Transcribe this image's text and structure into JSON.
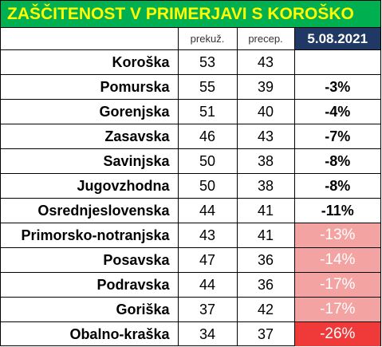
{
  "title": "ZAŠČITENOST V PRIMERJAVI S KOROŠKO",
  "table": {
    "header": [
      "prekuž.",
      "precep.",
      "5.08.2021"
    ],
    "rows": [
      [
        "Koroška",
        53,
        43
      ],
      [
        "Pomurska",
        55,
        39,
        "-3%"
      ],
      [
        "Gorenjska",
        51,
        40,
        "-4%"
      ],
      [
        "Zasavska",
        46,
        43,
        "-7%"
      ],
      [
        "Savinjska",
        50,
        38,
        "-8%"
      ],
      [
        "Jugovzhodna",
        50,
        38,
        "-8%"
      ],
      [
        "Osrednjeslovenska",
        44,
        41,
        "-11%"
      ],
      [
        "Primorsko-notranjska",
        43,
        41,
        "-13%"
      ],
      [
        "Posavska",
        47,
        36,
        "-14%"
      ],
      [
        "Podravska",
        44,
        36,
        "-17%"
      ],
      [
        "Goriška",
        37,
        42,
        "-17%"
      ],
      [
        "Obalno-kraška",
        34,
        37,
        "-26%"
      ]
    ],
    "highlight": [
      null,
      null,
      null,
      null,
      null,
      null,
      null,
      "#f4a3a3",
      "#f4a3a3",
      "#f4a3a3",
      "#f4a3a3",
      "#f03a3a"
    ]
  }
}
